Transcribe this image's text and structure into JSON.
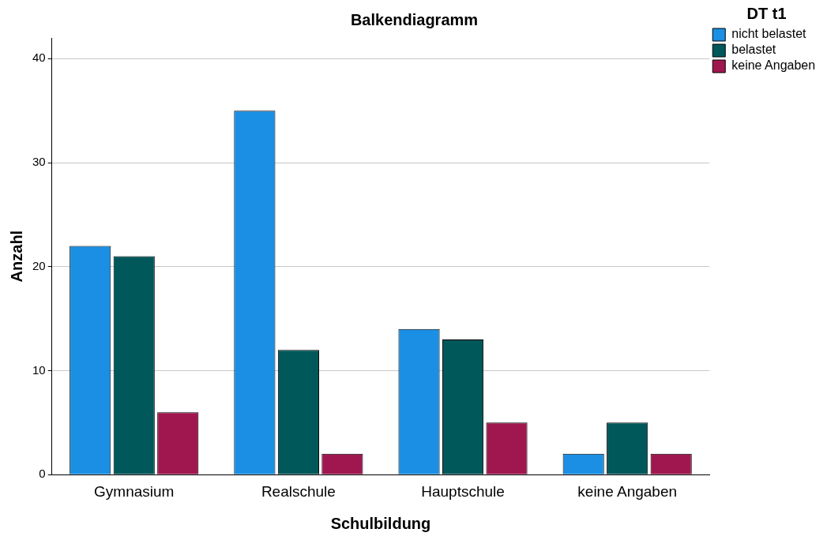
{
  "chart_data": {
    "type": "bar",
    "title": "Balkendiagramm",
    "xlabel": "Schulbildung",
    "ylabel": "Anzahl",
    "legend_title": "DT t1",
    "categories": [
      "Gymnasium",
      "Realschule",
      "Hauptschule",
      "keine Angaben"
    ],
    "series": [
      {
        "name": "nicht belastet",
        "color": "#1a8fe3",
        "values": [
          22,
          35,
          14,
          2
        ]
      },
      {
        "name": "belastet",
        "color": "#00585a",
        "values": [
          21,
          12,
          13,
          5
        ]
      },
      {
        "name": "keine Angaben",
        "color": "#a0174f",
        "values": [
          6,
          2,
          5,
          2
        ]
      }
    ],
    "ylim": [
      0,
      42
    ],
    "yticks": [
      0,
      10,
      20,
      30,
      40
    ],
    "grid": "y",
    "legend": "top right"
  }
}
